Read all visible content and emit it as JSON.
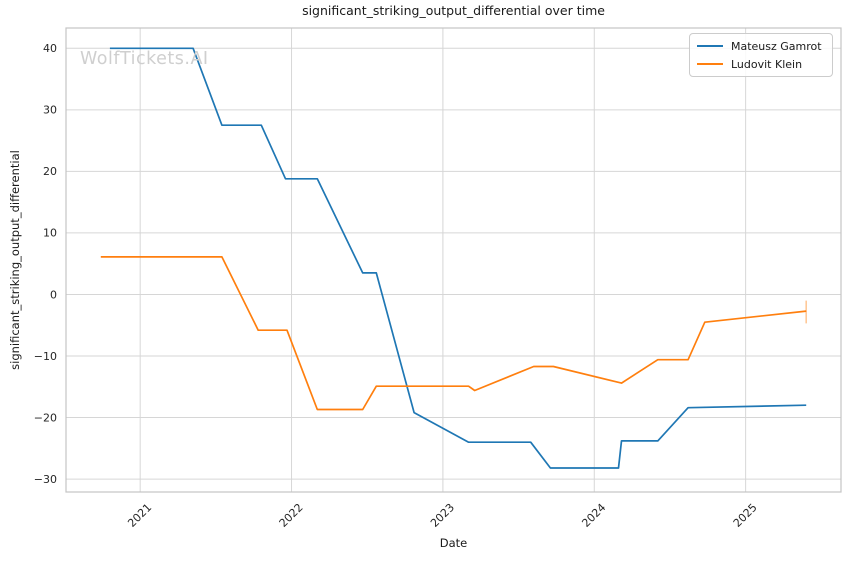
{
  "figure": {
    "watermark": "WolfTickets.AI"
  },
  "colors": {
    "grid": "#d6d6d6",
    "spine": "#c4c4c4",
    "tick_text": "#262626",
    "series_blue": "#1f77b4",
    "series_orange": "#ff7f0e"
  },
  "chart_data": {
    "type": "line",
    "title": "significant_striking_output_differential over time",
    "xlabel": "Date",
    "ylabel": "significant_striking_output_differential",
    "grid": true,
    "legend_position": "upper right",
    "xlim": [
      2020.51,
      2025.63
    ],
    "ylim": [
      -32.1,
      43.3
    ],
    "x_ticks": {
      "values": [
        2021,
        2022,
        2023,
        2024,
        2025
      ],
      "labels": [
        "2021",
        "2022",
        "2023",
        "2024",
        "2025"
      ]
    },
    "y_ticks": {
      "values": [
        -30,
        -20,
        -10,
        0,
        10,
        20,
        30,
        40
      ],
      "labels": [
        "−30",
        "−20",
        "−10",
        "0",
        "10",
        "20",
        "30",
        "40"
      ]
    },
    "series": [
      {
        "name": "Mateusz Gamrot",
        "color": "#1f77b4",
        "x": [
          2020.8,
          2021.35,
          2021.54,
          2021.8,
          2021.96,
          2022.17,
          2022.47,
          2022.56,
          2022.81,
          2023.17,
          2023.58,
          2023.71,
          2024.16,
          2024.18,
          2024.42,
          2024.62,
          2025.4
        ],
        "y": [
          40.0,
          40.0,
          27.5,
          27.5,
          18.8,
          18.8,
          3.5,
          3.5,
          -19.2,
          -24.0,
          -24.0,
          -28.2,
          -28.2,
          -23.8,
          -23.8,
          -18.4,
          -18.0
        ]
      },
      {
        "name": "Ludovit Klein",
        "color": "#ff7f0e",
        "x": [
          2020.74,
          2021.54,
          2021.78,
          2021.97,
          2022.17,
          2022.47,
          2022.56,
          2023.17,
          2023.21,
          2023.6,
          2023.73,
          2024.18,
          2024.42,
          2024.62,
          2024.73,
          2025.4
        ],
        "y": [
          6.1,
          6.1,
          -5.8,
          -5.8,
          -18.7,
          -18.7,
          -14.9,
          -14.9,
          -15.6,
          -11.7,
          -11.7,
          -14.4,
          -10.6,
          -10.6,
          -4.5,
          -2.7
        ],
        "end_cap": {
          "x": 2025.4,
          "y1": -1.0,
          "y2": -4.7
        }
      }
    ]
  }
}
